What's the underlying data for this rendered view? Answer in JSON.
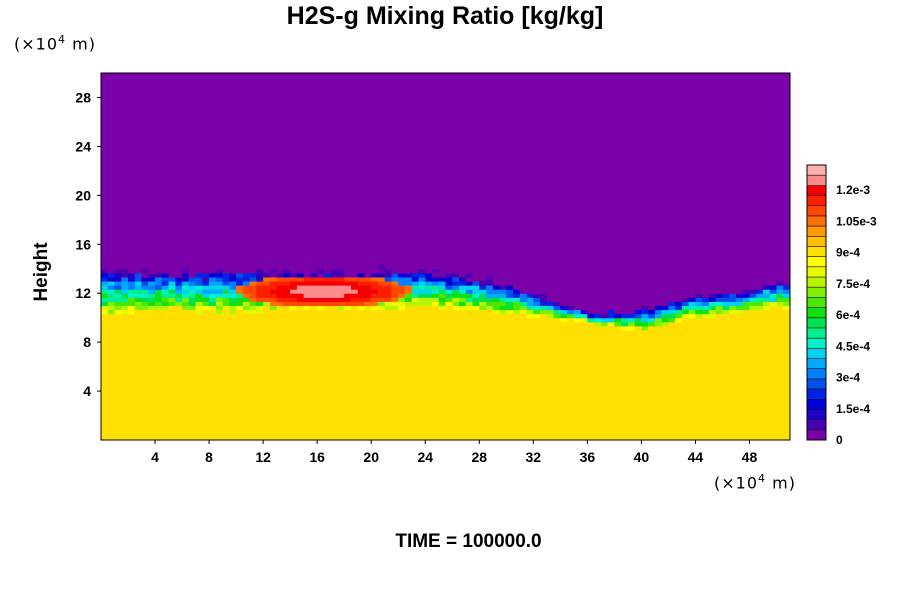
{
  "chart_data": {
    "type": "heatmap",
    "title": "H2S-g Mixing Ratio [kg/kg]",
    "ylabel": "Height",
    "x_unit": {
      "prefix": "(×10",
      "exp": "4",
      "suffix": " m)"
    },
    "y_unit": {
      "prefix": "(×10",
      "exp": "4",
      "suffix": " m)"
    },
    "xlim": [
      0,
      51
    ],
    "ylim": [
      0,
      30
    ],
    "x_ticks": [
      "4",
      "8",
      "12",
      "16",
      "20",
      "24",
      "28",
      "32",
      "36",
      "40",
      "44",
      "48"
    ],
    "y_ticks": [
      "4",
      "8",
      "12",
      "16",
      "20",
      "24",
      "28"
    ],
    "colorbar": {
      "min": 0,
      "max": 0.00132,
      "labels": [
        "0",
        "1.5e-4",
        "3e-4",
        "4.5e-4",
        "6e-4",
        "7.5e-4",
        "9e-4",
        "1.05e-3",
        "1.2e-3"
      ],
      "label_values": [
        0,
        0.00015,
        0.0003,
        0.00045,
        0.0006,
        0.00075,
        0.0009,
        0.00105,
        0.0012
      ],
      "colors": [
        "#7a00a8",
        "#4800b4",
        "#1e00c8",
        "#0000d8",
        "#0024e6",
        "#0050f0",
        "#0080ff",
        "#00aaff",
        "#00d2f0",
        "#00f0c8",
        "#00f090",
        "#00e050",
        "#10e010",
        "#48e800",
        "#80f000",
        "#b8f400",
        "#e8fa00",
        "#ffff00",
        "#ffe000",
        "#ffc000",
        "#ff9a00",
        "#ff7000",
        "#ff4800",
        "#ff1e00",
        "#f50000",
        "#ff8c8c",
        "#ffb0b0"
      ]
    },
    "fields": {
      "upper_value": 0,
      "lower_value": 0.00088,
      "pocket_value": 0.00125,
      "interface_heights": {
        "x": [
          0,
          2,
          4,
          6,
          8,
          10,
          12,
          14,
          16,
          18,
          20,
          22,
          24,
          26,
          28,
          30,
          32,
          34,
          36,
          38,
          40,
          42,
          44,
          46,
          48,
          51
        ],
        "y": [
          14.2,
          14.0,
          13.9,
          14.0,
          14.1,
          14.2,
          14.0,
          14.1,
          14.1,
          14.0,
          14.0,
          14.1,
          14.0,
          13.8,
          13.4,
          12.9,
          12.0,
          11.3,
          10.6,
          10.5,
          10.8,
          11.4,
          11.8,
          12.0,
          12.4,
          13.3
        ]
      },
      "mixed_layer_bottom": {
        "x": [
          0,
          4,
          8,
          12,
          16,
          20,
          24,
          28,
          32,
          36,
          38,
          40,
          44,
          48,
          51
        ],
        "y": [
          10.2,
          10.6,
          10.3,
          10.5,
          10.6,
          10.7,
          10.9,
          10.6,
          10.1,
          9.6,
          9.2,
          9.0,
          10.0,
          10.5,
          10.8
        ]
      }
    }
  },
  "time_label": "TIME = 100000.0"
}
